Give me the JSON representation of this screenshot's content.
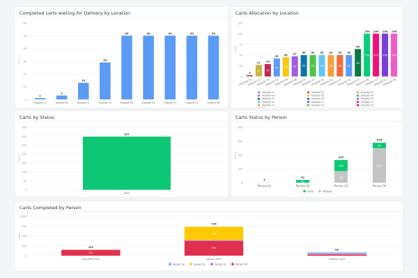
{
  "panels": {
    "p1": {
      "title": "Completed carts waiting for Delivery by Location"
    },
    "p2": {
      "title": "Carts Allocation by Location"
    },
    "p3": {
      "title": "Carts by Status"
    },
    "p4": {
      "title": "Carts Status by Person"
    },
    "p5": {
      "title": "Carts Completed by Person"
    }
  },
  "chart_data": [
    {
      "id": "p1",
      "type": "bar",
      "ylabel": "Count",
      "ylim": [
        0,
        60
      ],
      "yticks": [
        0,
        10,
        20,
        30,
        40,
        50,
        60
      ],
      "categories": [
        "Hospital 11",
        "Hospital 02",
        "Hospital 01",
        "Hospital 14",
        "Hospital 08",
        "Hospital 09",
        "Hospital 07",
        "Hospital 05",
        "Hospital 06"
      ],
      "values": [
        1,
        3,
        13,
        29,
        50,
        50,
        50,
        50,
        50
      ],
      "color": "#5b9bf5",
      "grid": true
    },
    {
      "id": "p2",
      "type": "bar",
      "ylabel": "Count",
      "ylim": [
        0,
        125
      ],
      "yticks": [
        0,
        25,
        50,
        75,
        100,
        125
      ],
      "categories": [
        "Hospital 02",
        "Hospital 13",
        "Hospital 15",
        "Hospital 01",
        "Hospital 09",
        "Hospital 08",
        "Hospital 05",
        "Hospital 14",
        "Hospital 10",
        "Hospital 03",
        "Hospital 17",
        "Hospital 16",
        "Hospital 07",
        "Hospital 06",
        "Hospital 12",
        "Hospital 11",
        "Hospital 04"
      ],
      "values": [
        3,
        27,
        29,
        42,
        45,
        47,
        50,
        50,
        50,
        50,
        50,
        50,
        64,
        100,
        100,
        100,
        100
      ],
      "colors": [
        "#e0435a",
        "#c9b43c",
        "#c2284f",
        "#5b9bf5",
        "#f9c80e",
        "#a45de0",
        "#0f74a8",
        "#52c24a",
        "#63c6f5",
        "#f7a03c",
        "#f56a3b",
        "#5b9bf5",
        "#0a7a45",
        "#0dcc77",
        "#f0117a",
        "#7a3fd6",
        "#f25cc4"
      ],
      "legend": [
        "Hospital 01",
        "Hospital 02",
        "Hospital 03",
        "Hospital 04",
        "Hospital 05",
        "Hospital 06",
        "Hospital 07",
        "Hospital 08",
        "Hospital 09",
        "Hospital 10",
        "Hospital 11",
        "Hospital 12",
        "Hospital 13",
        "Hospital 14",
        "Hospital 15"
      ],
      "legend_colors": [
        "#5b9bf5",
        "#e0435a",
        "#f7a03c",
        "#f25cc4",
        "#f9c80e",
        "#0dcc77",
        "#0a7a45",
        "#0f74a8",
        "#a45de0",
        "#63c6f5",
        "#7a3fd6",
        "#f0117a",
        "#c9b43c",
        "#52c24a",
        "#c2284f"
      ],
      "legend_page": "1/2",
      "grid": true
    },
    {
      "id": "p3",
      "type": "bar",
      "ylabel": "Count",
      "ylim": [
        0,
        350
      ],
      "yticks": [
        0,
        50,
        100,
        150,
        200,
        250,
        300,
        350
      ],
      "categories": [
        "Done"
      ],
      "values": [
        297
      ],
      "color": "#0dc774",
      "grid": true
    },
    {
      "id": "p4",
      "type": "stacked-bar",
      "ylabel": "Count",
      "ylim": [
        0,
        800
      ],
      "yticks": [
        0,
        200,
        400,
        600,
        800
      ],
      "categories": [
        "Person 01",
        "Person 02",
        "Person 03",
        "Person 04"
      ],
      "series": [
        {
          "name": "Shipped",
          "values": [
            5,
            0,
            165,
            495
          ],
          "color": "#c4c4c4"
        },
        {
          "name": "Done",
          "values": [
            0,
            42,
            165,
            83
          ],
          "color": "#0dc774"
        }
      ],
      "totals": [
        5,
        42,
        330,
        578
      ],
      "legend_order": [
        "Done",
        "Shipped"
      ],
      "grid": true
    },
    {
      "id": "p5",
      "type": "stacked-bar",
      "ylabel": "Count",
      "ylim": [
        0,
        1000
      ],
      "yticks": [
        0,
        250,
        500,
        750,
        1000
      ],
      "categories": [
        "December 2023",
        "January 2024",
        "February 2024"
      ],
      "series": [
        {
          "name": "Person 04",
          "values": [
            151,
            395,
            43
          ],
          "color": "#e0304e"
        },
        {
          "name": "Person 01",
          "values": [
            0,
            1,
            10
          ],
          "color": "#a45de0"
        },
        {
          "name": "Person 03",
          "values": [
            0,
            339,
            0
          ],
          "color": "#fcc800"
        },
        {
          "name": "Person 02",
          "values": [
            0,
            0,
            31
          ],
          "color": "#5b9bf5"
        }
      ],
      "totals": [
        151,
        735,
        84
      ],
      "legend_order": [
        "Person 02",
        "Person 03",
        "Person 01",
        "Person 04"
      ],
      "grid": true
    }
  ]
}
